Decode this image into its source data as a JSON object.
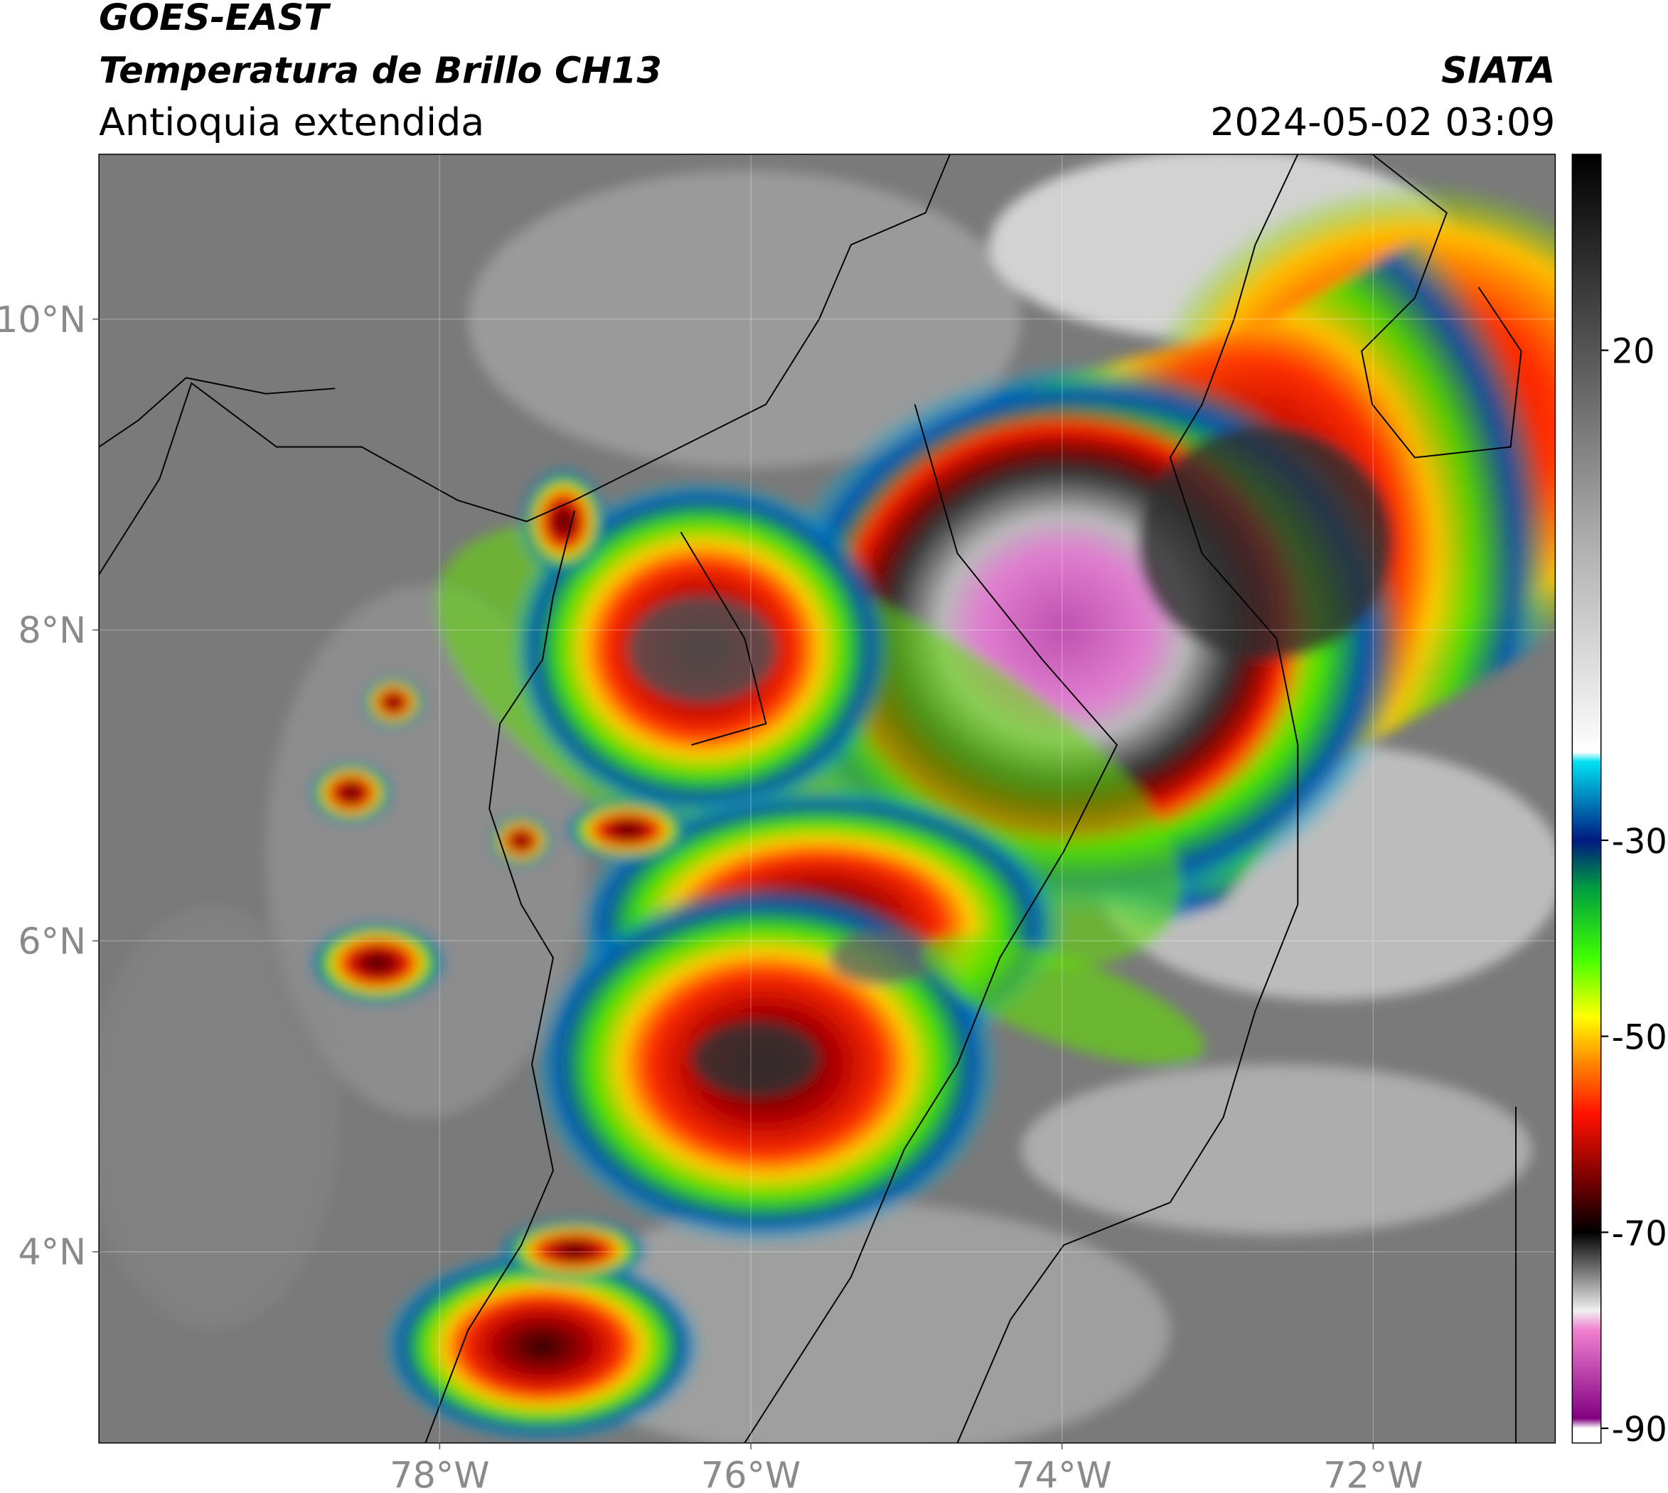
{
  "header": {
    "satellite": "GOES-EAST",
    "product": "Temperatura de Brillo CH13",
    "region": "Antioquia extendida",
    "source": "SIATA",
    "datetime": "2024-05-02 03:09"
  },
  "map": {
    "lonlim": [
      -80.19,
      -70.83
    ],
    "latlim": [
      2.77,
      11.06
    ],
    "lonticks": [
      {
        "value": -78,
        "label": "78°W"
      },
      {
        "value": -76,
        "label": "76°W"
      },
      {
        "value": -74,
        "label": "74°W"
      },
      {
        "value": -72,
        "label": "72°W"
      }
    ],
    "latticks": [
      {
        "value": 4,
        "label": "4°N"
      },
      {
        "value": 6,
        "label": "6°N"
      },
      {
        "value": 8,
        "label": "8°N"
      },
      {
        "value": 10,
        "label": "10°N"
      }
    ]
  },
  "colorbar": {
    "clim": [
      -91.5,
      40
    ],
    "ticks": [
      20,
      -30,
      -50,
      -70,
      -90
    ],
    "colorscale": [
      [
        40,
        "#000000"
      ],
      [
        20,
        "#555555"
      ],
      [
        0,
        "#b0b0b0"
      ],
      [
        -21,
        "#ffffff"
      ],
      [
        -22,
        "#00e0f0"
      ],
      [
        -30,
        "#001a80"
      ],
      [
        -35,
        "#00a040"
      ],
      [
        -42,
        "#40ff00"
      ],
      [
        -48,
        "#ffff00"
      ],
      [
        -53,
        "#ff8000"
      ],
      [
        -58,
        "#ff1000"
      ],
      [
        -65,
        "#700000"
      ],
      [
        -70,
        "#000000"
      ],
      [
        -78,
        "#f0f0f0"
      ],
      [
        -80,
        "#f080d0"
      ],
      [
        -89,
        "#800080"
      ],
      [
        -90,
        "#ffffff"
      ],
      [
        -91.5,
        "#ffffff"
      ]
    ]
  }
}
